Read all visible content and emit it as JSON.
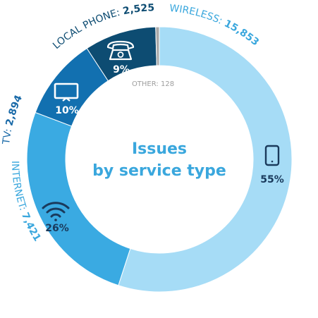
{
  "chart_data": {
    "type": "pie",
    "title": "Issues\nby service type",
    "title_lines": [
      "Issues",
      "by service type"
    ],
    "slices": [
      {
        "key": "wireless",
        "label": "WIRELESS",
        "value": 15853,
        "value_text": "15,853",
        "pct": "55%",
        "color": "#a6dcf6",
        "icon": "mobile-phone-icon",
        "label_color": "#3aa7dd",
        "pct_color": "#1a3a5c"
      },
      {
        "key": "internet",
        "label": "INTERNET",
        "value": 7421,
        "value_text": "7,421",
        "pct": "26%",
        "color": "#3aaae2",
        "icon": "wifi-icon",
        "label_color": "#3aa7dd",
        "pct_color": "#1a3a5c"
      },
      {
        "key": "tv",
        "label": "TV",
        "value": 2894,
        "value_text": "2,894",
        "pct": "10%",
        "color": "#1270b0",
        "icon": "television-icon",
        "label_color": "#1a6aa8",
        "pct_color": "#ffffff"
      },
      {
        "key": "localphone",
        "label": "LOCAL PHONE",
        "value": 2525,
        "value_text": "2,525",
        "pct": "9%",
        "color": "#0d4c72",
        "icon": "telephone-icon",
        "label_color": "#0d4c72",
        "pct_color": "#ffffff"
      },
      {
        "key": "other",
        "label": "OTHER",
        "value": 128,
        "value_text": "128",
        "color": "#a8a8a8",
        "label_color": "#9e9e9e"
      }
    ],
    "label_separator": ": "
  }
}
